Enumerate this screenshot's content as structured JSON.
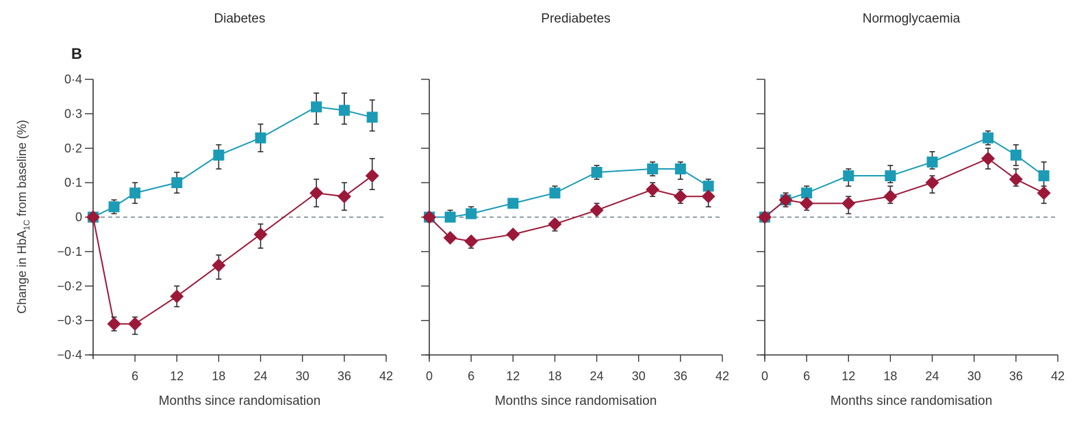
{
  "figure": {
    "panel_letter": "B",
    "ylabel": "Change in HbA",
    "ylabel_sub": "1C",
    "ylabel_suffix": " from baseline (%)"
  },
  "chart_data": [
    {
      "type": "line",
      "title": "Diabetes",
      "xlabel": "Months since randomisation",
      "ylabel": "Change in HbA1C from baseline (%)",
      "xlim": [
        0,
        42
      ],
      "ylim": [
        -0.4,
        0.4
      ],
      "xticks": [
        6,
        12,
        18,
        24,
        30,
        36,
        42
      ],
      "yticks": [
        -0.4,
        -0.3,
        -0.2,
        -0.1,
        0,
        0.1,
        0.2,
        0.3,
        0.4
      ],
      "ytick_labels": [
        "−0·4",
        "−0·3",
        "−0·2",
        "−0·1",
        "0",
        "0·1",
        "0·2",
        "0·3",
        "0·4"
      ],
      "show_yticklabels": true,
      "reference_line": 0,
      "x": [
        0,
        3,
        6,
        12,
        18,
        24,
        32,
        36,
        40
      ],
      "series": [
        {
          "name": "teal-squares",
          "color": "#1b9bb5",
          "marker": "square",
          "values": [
            0,
            0.03,
            0.07,
            0.1,
            0.18,
            0.23,
            0.32,
            0.31,
            0.29
          ],
          "err_low": [
            null,
            0.01,
            0.04,
            0.07,
            0.14,
            0.19,
            0.27,
            0.27,
            0.25
          ],
          "err_high": [
            null,
            0.05,
            0.1,
            0.13,
            0.21,
            0.27,
            0.36,
            0.36,
            0.34
          ]
        },
        {
          "name": "red-diamonds",
          "color": "#9b1838",
          "marker": "diamond",
          "values": [
            0,
            -0.31,
            -0.31,
            -0.23,
            -0.14,
            -0.05,
            0.07,
            0.06,
            0.12
          ],
          "err_low": [
            null,
            -0.33,
            -0.34,
            -0.26,
            -0.18,
            -0.09,
            0.03,
            0.02,
            0.08
          ],
          "err_high": [
            null,
            -0.29,
            -0.29,
            -0.2,
            -0.11,
            -0.02,
            0.11,
            0.1,
            0.17
          ]
        }
      ]
    },
    {
      "type": "line",
      "title": "Prediabetes",
      "xlabel": "Months since randomisation",
      "xlim": [
        0,
        42
      ],
      "ylim": [
        -0.4,
        0.4
      ],
      "xticks": [
        0,
        6,
        12,
        18,
        24,
        30,
        36,
        42
      ],
      "yticks": [
        -0.4,
        -0.3,
        -0.2,
        -0.1,
        0,
        0.1,
        0.2,
        0.3,
        0.4
      ],
      "show_yticklabels": false,
      "reference_line": 0,
      "x": [
        0,
        3,
        6,
        12,
        18,
        24,
        32,
        36,
        40
      ],
      "series": [
        {
          "name": "teal-squares",
          "color": "#1b9bb5",
          "marker": "square",
          "values": [
            0,
            0,
            0.01,
            0.04,
            0.07,
            0.13,
            0.14,
            0.14,
            0.09
          ],
          "err_low": [
            null,
            null,
            null,
            null,
            null,
            0.11,
            0.12,
            0.11,
            null
          ],
          "err_high": [
            null,
            0.02,
            0.03,
            null,
            0.09,
            0.15,
            0.16,
            0.16,
            0.11
          ]
        },
        {
          "name": "red-diamonds",
          "color": "#9b1838",
          "marker": "diamond",
          "values": [
            0,
            -0.06,
            -0.07,
            -0.05,
            -0.02,
            0.02,
            0.08,
            0.06,
            0.06
          ],
          "err_low": [
            null,
            null,
            -0.09,
            null,
            -0.04,
            null,
            0.06,
            0.04,
            0.03
          ],
          "err_high": [
            null,
            null,
            null,
            null,
            null,
            0.04,
            0.1,
            0.08,
            null
          ]
        }
      ]
    },
    {
      "type": "line",
      "title": "Normoglycaemia",
      "xlabel": "Months since randomisation",
      "xlim": [
        0,
        42
      ],
      "ylim": [
        -0.4,
        0.4
      ],
      "xticks": [
        0,
        6,
        12,
        18,
        24,
        30,
        36,
        42
      ],
      "yticks": [
        -0.4,
        -0.3,
        -0.2,
        -0.1,
        0,
        0.1,
        0.2,
        0.3,
        0.4
      ],
      "show_yticklabels": false,
      "reference_line": 0,
      "x": [
        0,
        3,
        6,
        12,
        18,
        24,
        32,
        36,
        40
      ],
      "series": [
        {
          "name": "teal-squares",
          "color": "#1b9bb5",
          "marker": "square",
          "values": [
            0,
            0.05,
            0.07,
            0.12,
            0.12,
            0.16,
            0.23,
            0.18,
            0.12
          ],
          "err_low": [
            null,
            null,
            null,
            0.09,
            0.1,
            0.14,
            0.21,
            0.15,
            0.09
          ],
          "err_high": [
            null,
            0.07,
            0.09,
            0.14,
            0.15,
            0.19,
            0.25,
            0.21,
            0.16
          ]
        },
        {
          "name": "red-diamonds",
          "color": "#9b1838",
          "marker": "diamond",
          "values": [
            0,
            0.05,
            0.04,
            0.04,
            0.06,
            0.1,
            0.17,
            0.11,
            0.07
          ],
          "err_low": [
            null,
            0.03,
            0.02,
            0.01,
            0.04,
            0.07,
            0.14,
            0.09,
            0.04
          ],
          "err_high": [
            null,
            0.07,
            null,
            0.06,
            0.09,
            0.12,
            0.2,
            0.14,
            null
          ]
        }
      ]
    }
  ]
}
